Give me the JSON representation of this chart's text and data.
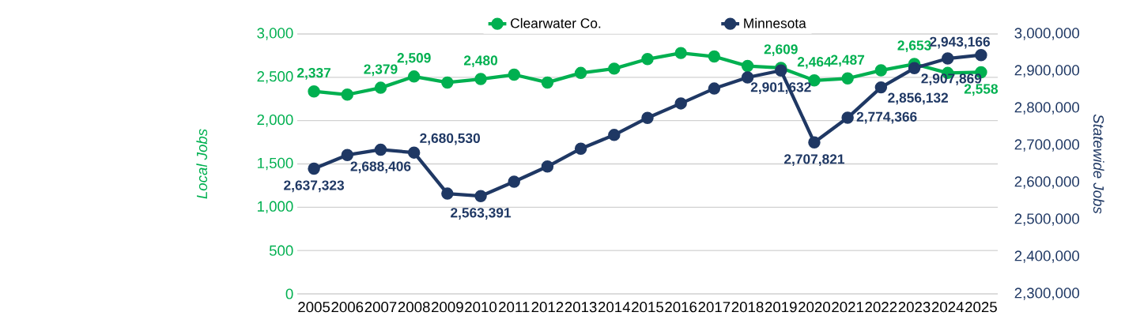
{
  "chart_data": {
    "type": "line",
    "categories": [
      "2005",
      "2006",
      "2007",
      "2008",
      "2009",
      "2010",
      "2011",
      "2012",
      "2013",
      "2014",
      "2015",
      "2016",
      "2017",
      "2018",
      "2019",
      "2020",
      "2021",
      "2022",
      "2023",
      "2024",
      "2025"
    ],
    "series": [
      {
        "name": "Clearwater Co.",
        "color": "#00b050",
        "values": [
          2337,
          2300,
          2379,
          2509,
          2440,
          2480,
          2530,
          2440,
          2550,
          2600,
          2710,
          2780,
          2740,
          2630,
          2609,
          2464,
          2487,
          2580,
          2653,
          2550,
          2558
        ],
        "value_labels": [
          "2,337",
          null,
          "2,379",
          "2,509",
          null,
          "2,480",
          null,
          null,
          null,
          null,
          null,
          null,
          null,
          null,
          "2,609",
          "2,464",
          "2,487",
          null,
          "2,653",
          null,
          "2,558"
        ]
      },
      {
        "name": "Minnesota",
        "color": "#1f3864",
        "axis": "y2",
        "values": [
          2637323,
          2674000,
          2688406,
          2680530,
          2570000,
          2563391,
          2602000,
          2643000,
          2691000,
          2728000,
          2774000,
          2813000,
          2853000,
          2883000,
          2901632,
          2707821,
          2774366,
          2856132,
          2907869,
          2934000,
          2943166
        ],
        "value_labels": [
          "2,637,323",
          null,
          "2,688,406",
          "2,680,530",
          null,
          "2,563,391",
          null,
          null,
          null,
          null,
          null,
          null,
          null,
          null,
          "2,901,632",
          "2,707,821",
          "2,774,366",
          "2,856,132",
          "2,907,869",
          null,
          "2,943,166"
        ]
      }
    ],
    "ylabel": "Local Jobs",
    "y2label": "Statewide Jobs",
    "ylim": [
      0,
      3000
    ],
    "yticks": [
      0,
      500,
      {
        "value": 1000,
        "label": "1,000"
      },
      {
        "value": 1500,
        "label": "1,500"
      },
      {
        "value": 2000,
        "label": "2,000"
      },
      {
        "value": 2500,
        "label": "2,500"
      },
      {
        "value": 3000,
        "label": "3,000"
      }
    ],
    "y2lim": [
      2300000,
      3000000
    ],
    "y2ticks": [
      {
        "value": 2300000,
        "label": "2,300,000"
      },
      {
        "value": 2400000,
        "label": "2,400,000"
      },
      {
        "value": 2500000,
        "label": "2,500,000"
      },
      {
        "value": 2600000,
        "label": "2,600,000"
      },
      {
        "value": 2700000,
        "label": "2,700,000"
      },
      {
        "value": 2800000,
        "label": "2,800,000"
      },
      {
        "value": 2900000,
        "label": "2,900,000"
      },
      {
        "value": 3000000,
        "label": "3,000,000"
      }
    ],
    "grid": "y",
    "legend": "top",
    "marker": "circle",
    "line_style": "solid"
  }
}
